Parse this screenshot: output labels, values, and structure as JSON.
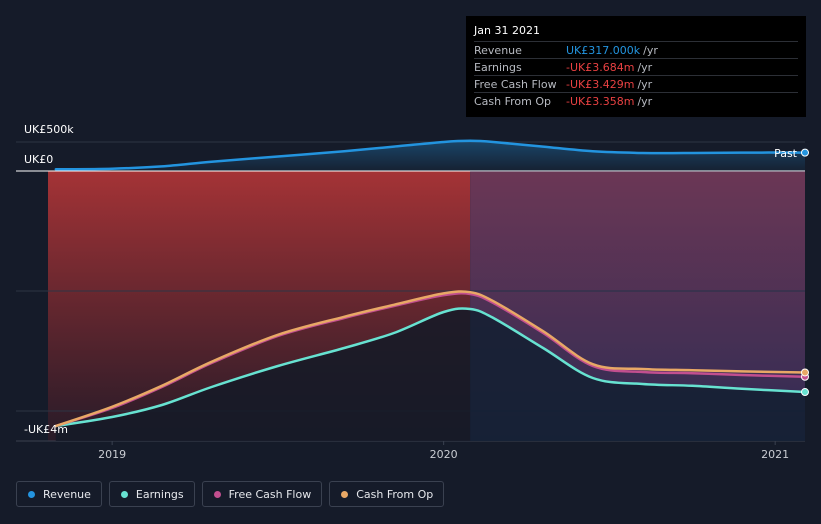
{
  "tooltip": {
    "date": "Jan 31 2021",
    "rows": [
      {
        "label": "Revenue",
        "value": "UK£317.000k",
        "unit": "/yr",
        "color": "#2394df"
      },
      {
        "label": "Earnings",
        "value": "-UK£3.684m",
        "unit": "/yr",
        "color": "#e84142"
      },
      {
        "label": "Free Cash Flow",
        "value": "-UK£3.429m",
        "unit": "/yr",
        "color": "#e84142"
      },
      {
        "label": "Cash From Op",
        "value": "-UK£3.358m",
        "unit": "/yr",
        "color": "#e84142"
      }
    ]
  },
  "past_label": "Past",
  "legend": [
    {
      "name": "Revenue",
      "color": "#2394df"
    },
    {
      "name": "Earnings",
      "color": "#67e2d1"
    },
    {
      "name": "Free Cash Flow",
      "color": "#c24f8f"
    },
    {
      "name": "Cash From Op",
      "color": "#e8a866"
    }
  ],
  "chart_data": {
    "type": "line",
    "y_tick_labels": [
      "UK£500k",
      "UK£0",
      "-UK£4m"
    ],
    "x_tick_labels": [
      "2019",
      "2020",
      "2021"
    ],
    "y_ticks_k": [
      500,
      0,
      -4000
    ],
    "x_ticks": [
      2019.0,
      2020.0,
      2021.0
    ],
    "ylim_k": [
      -4500,
      500
    ],
    "xlim": [
      2018.71,
      2021.09
    ],
    "past_start": 2020.08,
    "series": [
      {
        "name": "Revenue",
        "color": "#2394df",
        "x": [
          2018.83,
          2019.0,
          2019.15,
          2019.3,
          2019.5,
          2019.7,
          2019.85,
          2020.0,
          2020.08,
          2020.15,
          2020.3,
          2020.45,
          2020.6,
          2020.75,
          2020.9,
          2021.09
        ],
        "y": [
          30,
          40,
          80,
          160,
          250,
          340,
          420,
          500,
          520,
          500,
          420,
          340,
          310,
          310,
          317,
          317
        ]
      },
      {
        "name": "Earnings",
        "color": "#67e2d1",
        "x": [
          2018.83,
          2019.0,
          2019.15,
          2019.3,
          2019.5,
          2019.7,
          2019.85,
          2020.0,
          2020.08,
          2020.15,
          2020.3,
          2020.45,
          2020.6,
          2020.75,
          2020.9,
          2021.09
        ],
        "y": [
          -4250,
          -4100,
          -3900,
          -3600,
          -3250,
          -2950,
          -2700,
          -2350,
          -2300,
          -2450,
          -2950,
          -3450,
          -3550,
          -3580,
          -3630,
          -3684
        ]
      },
      {
        "name": "Free Cash Flow",
        "color": "#c24f8f",
        "x": [
          2018.83,
          2019.0,
          2019.15,
          2019.3,
          2019.5,
          2019.7,
          2019.85,
          2020.0,
          2020.08,
          2020.15,
          2020.3,
          2020.45,
          2020.6,
          2020.75,
          2020.9,
          2021.09
        ],
        "y": [
          -4250,
          -3950,
          -3600,
          -3200,
          -2750,
          -2450,
          -2250,
          -2070,
          -2050,
          -2200,
          -2700,
          -3250,
          -3350,
          -3370,
          -3400,
          -3429
        ]
      },
      {
        "name": "Cash From Op",
        "color": "#e8a866",
        "x": [
          2018.83,
          2019.0,
          2019.15,
          2019.3,
          2019.5,
          2019.7,
          2019.85,
          2020.0,
          2020.08,
          2020.15,
          2020.3,
          2020.45,
          2020.6,
          2020.75,
          2020.9,
          2021.09
        ],
        "y": [
          -4250,
          -3930,
          -3580,
          -3180,
          -2730,
          -2430,
          -2230,
          -2040,
          -2020,
          -2170,
          -2670,
          -3220,
          -3300,
          -3320,
          -3340,
          -3358
        ]
      }
    ]
  }
}
